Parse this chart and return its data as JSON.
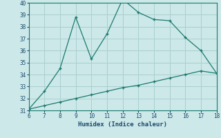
{
  "xlabel": "Humidex (Indice chaleur)",
  "xlim": [
    6,
    18
  ],
  "ylim": [
    31,
    40
  ],
  "xticks": [
    6,
    7,
    8,
    9,
    10,
    11,
    12,
    13,
    14,
    15,
    16,
    17,
    18
  ],
  "yticks": [
    31,
    32,
    33,
    34,
    35,
    36,
    37,
    38,
    39,
    40
  ],
  "line1_x": [
    6,
    7,
    8,
    9,
    10,
    11,
    12,
    13,
    14,
    15,
    16,
    17,
    18
  ],
  "line1_y": [
    31.1,
    32.6,
    34.5,
    38.8,
    35.3,
    37.4,
    40.3,
    39.2,
    38.6,
    38.5,
    37.1,
    36.0,
    34.1
  ],
  "line2_x": [
    6,
    7,
    8,
    9,
    10,
    11,
    12,
    13,
    14,
    15,
    16,
    17,
    18
  ],
  "line2_y": [
    31.1,
    31.4,
    31.7,
    32.0,
    32.3,
    32.6,
    32.9,
    33.1,
    33.4,
    33.7,
    34.0,
    34.3,
    34.1
  ],
  "line_color": "#1a7a6e",
  "bg_color": "#cce8e8",
  "grid_color": "#aacfcf",
  "font_color": "#1a4a6e",
  "marker": "+"
}
